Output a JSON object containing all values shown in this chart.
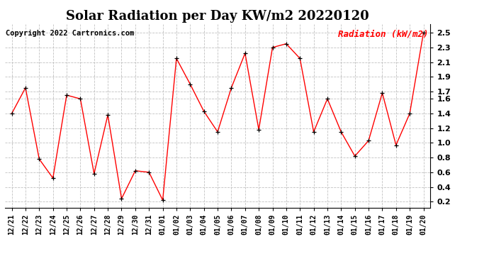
{
  "title": "Solar Radiation per Day KW/m2 20220120",
  "copyright": "Copyright 2022 Cartronics.com",
  "legend_label": "Radiation (kW/m2)",
  "dates": [
    "12/21",
    "12/22",
    "12/23",
    "12/24",
    "12/25",
    "12/26",
    "12/27",
    "12/28",
    "12/29",
    "12/30",
    "12/31",
    "01/01",
    "01/02",
    "01/03",
    "01/04",
    "01/05",
    "01/06",
    "01/07",
    "01/08",
    "01/09",
    "01/10",
    "01/11",
    "01/12",
    "01/13",
    "01/14",
    "01/15",
    "01/16",
    "01/17",
    "01/18",
    "01/19",
    "01/20"
  ],
  "values": [
    1.4,
    1.75,
    0.78,
    0.52,
    1.65,
    1.6,
    0.58,
    1.38,
    0.24,
    0.62,
    0.6,
    0.22,
    2.15,
    1.8,
    1.43,
    1.15,
    1.75,
    2.22,
    1.18,
    2.3,
    2.35,
    2.15,
    1.15,
    1.6,
    1.15,
    0.82,
    1.03,
    1.68,
    0.97,
    1.4,
    2.5
  ],
  "line_color": "red",
  "marker_color": "black",
  "background_color": "#ffffff",
  "grid_color": "#bbbbbb",
  "ylim": [
    0.12,
    2.62
  ],
  "yticks": [
    0.2,
    0.4,
    0.6,
    0.8,
    1.0,
    1.2,
    1.4,
    1.6,
    1.7,
    1.9,
    2.1,
    2.3,
    2.5
  ],
  "title_fontsize": 13,
  "copyright_fontsize": 7.5,
  "legend_fontsize": 9,
  "tick_fontsize": 7,
  "ylabel_fontsize": 10
}
